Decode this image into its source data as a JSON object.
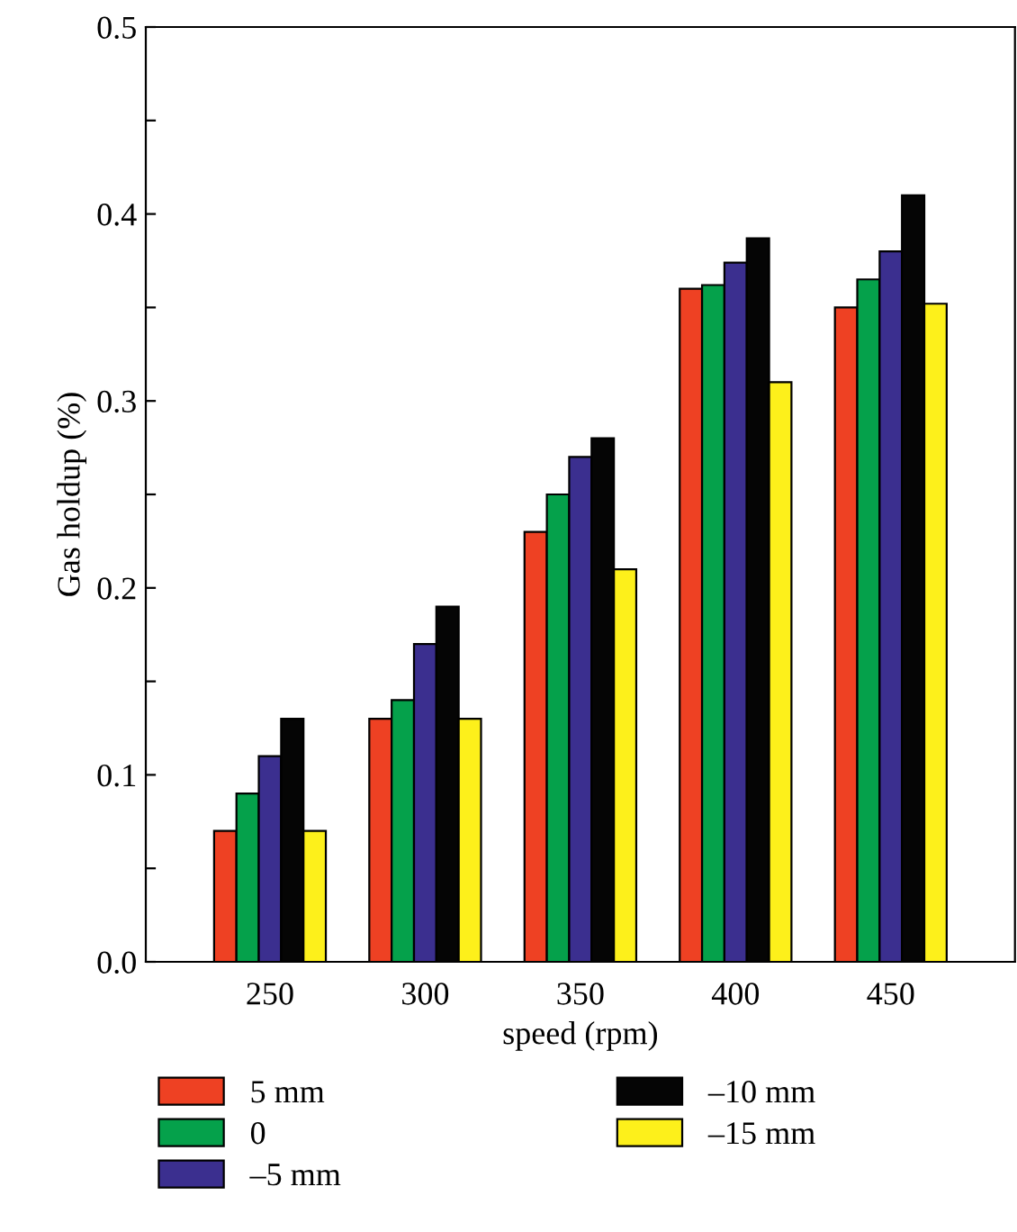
{
  "chart_data": {
    "type": "bar",
    "xlabel": "speed (rpm)",
    "ylabel": "Gas holdup (%)",
    "categories": [
      "250",
      "300",
      "350",
      "400",
      "450"
    ],
    "series": [
      {
        "name": "5 mm",
        "color": "#ee4123",
        "values": [
          0.07,
          0.13,
          0.23,
          0.36,
          0.35
        ]
      },
      {
        "name": "0",
        "color": "#05a14b",
        "values": [
          0.09,
          0.14,
          0.25,
          0.362,
          0.365
        ]
      },
      {
        "name": "–5 mm",
        "color": "#3b2f8f",
        "values": [
          0.11,
          0.17,
          0.27,
          0.374,
          0.38
        ]
      },
      {
        "name": "–10 mm",
        "color": "#050505",
        "values": [
          0.13,
          0.19,
          0.28,
          0.387,
          0.41
        ]
      },
      {
        "name": "–15 mm",
        "color": "#fdf01b",
        "values": [
          0.07,
          0.13,
          0.21,
          0.31,
          0.352
        ]
      }
    ],
    "ylim": [
      0,
      0.5
    ],
    "yticks": [
      {
        "value": 0.0,
        "label": "0.0"
      },
      {
        "value": 0.05,
        "label": null
      },
      0.1,
      {
        "value": 0.15,
        "label": null
      },
      0.2,
      {
        "value": 0.25,
        "label": null
      },
      0.3,
      {
        "value": 0.35,
        "label": null
      },
      0.4,
      {
        "value": 0.45,
        "label": null
      },
      0.5
    ],
    "grid": false,
    "legend": "bottom"
  }
}
